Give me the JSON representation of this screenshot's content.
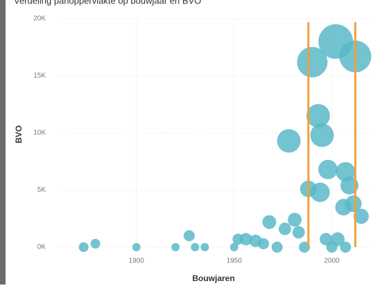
{
  "chart_data": {
    "type": "scatter",
    "title": "Verdeling panoppervlakte op bouwjaar en BVO",
    "xlabel": "Bouwjaren",
    "ylabel": "BVO",
    "color": "#5bb8c8",
    "grid": true,
    "xlim": [
      1860,
      2020
    ],
    "xticks": [
      1900,
      1950,
      2000
    ],
    "ylim": [
      0,
      20000
    ],
    "yticks": [
      {
        "value": 0,
        "label": "0K"
      },
      {
        "value": 5000,
        "label": "5K"
      },
      {
        "value": 10000,
        "label": "10K"
      },
      {
        "value": 15000,
        "label": "15K"
      },
      {
        "value": 20000,
        "label": "20K"
      }
    ],
    "x": [
      1873,
      1879,
      1900,
      1920,
      1927,
      1930,
      1935,
      1950,
      1952,
      1956,
      1961,
      1965,
      1968,
      1972,
      1976,
      1978,
      1981,
      1983,
      1986,
      1988,
      1990,
      1993,
      1994,
      1995,
      1997,
      2002,
      1998,
      2003,
      2006,
      2007,
      2009,
      2012,
      2011,
      2015,
      2000,
      2007
    ],
    "values": [
      0,
      300,
      0,
      0,
      1000,
      0,
      0,
      0,
      700,
      700,
      550,
      300,
      2200,
      0,
      1600,
      9300,
      2400,
      1300,
      0,
      5100,
      16200,
      11500,
      4800,
      9800,
      700,
      18000,
      6800,
      700,
      3500,
      6600,
      5400,
      16700,
      3800,
      2700,
      0,
      0
    ],
    "sizes": [
      7,
      7,
      6,
      6,
      8,
      6,
      6,
      6,
      8,
      9,
      9,
      8,
      10,
      8,
      9,
      17,
      10,
      9,
      8,
      12,
      22,
      17,
      14,
      17,
      9,
      25,
      14,
      10,
      12,
      14,
      13,
      23,
      12,
      11,
      8,
      8
    ],
    "reference_lines": [
      1988,
      2012
    ],
    "reference_color": "#f0a040"
  }
}
